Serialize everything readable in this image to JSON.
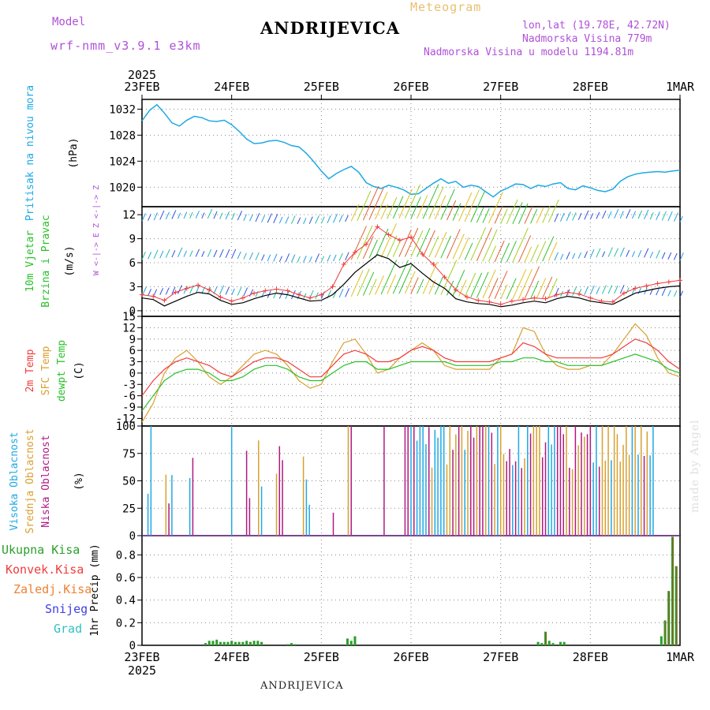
{
  "header": {
    "model_label": "Model",
    "model_name": "wrf-nmm_v3.9.1 e3km",
    "station": "ANDRIJEVICA",
    "title": "Meteogram",
    "lonlat": "lon,lat (19.78E, 42.72N)",
    "elevation": "Nadmorska Visina 779m",
    "model_elevation": "Nadmorska Visina u modelu 1194.81m",
    "footer_station": "ANDRIJEVICA",
    "credit": "made by Angel"
  },
  "colors": {
    "pressure": "#1ea9e4",
    "temp2m": "#f03c3c",
    "sfc": "#d8a030",
    "dewpt": "#2ac02a",
    "gust": "#f03c3c",
    "speed": "#000000",
    "cloud_high": "#1ea9e4",
    "cloud_mid": "#d8a030",
    "cloud_low": "#b01a80",
    "precip": "#2aa02a",
    "snow": "#4040e0",
    "grad": "#30c0c0",
    "purple": "#b050d8"
  },
  "chart_data": {
    "type": "meteogram",
    "x_axis": {
      "year": "2025",
      "days": [
        "23FEB",
        "24FEB",
        "25FEB",
        "26FEB",
        "27FEB",
        "28FEB",
        "1MAR"
      ],
      "range_hours": [
        0,
        144
      ]
    },
    "panels": [
      {
        "id": "pressure",
        "type": "line",
        "ylabel_lines": [
          "Pritisak na nivou mora"
        ],
        "unit": "(hPa)",
        "ylim": [
          1017,
          1033.5
        ],
        "ticks": [
          1020,
          1024,
          1028,
          1032
        ],
        "series": [
          {
            "name": "Pritisak na nivou mora",
            "x": [
              0,
              2,
              4,
              6,
              8,
              10,
              12,
              14,
              16,
              18,
              20,
              22,
              24,
              26,
              28,
              30,
              32,
              34,
              36,
              38,
              40,
              42,
              44,
              46,
              48,
              50,
              52,
              54,
              56,
              58,
              60,
              62,
              64,
              66,
              68,
              70,
              72,
              74,
              76,
              78,
              80,
              82,
              84,
              86,
              88,
              90,
              92,
              94,
              96,
              98,
              100,
              102,
              104,
              106,
              108,
              110,
              112,
              114,
              116,
              118,
              120,
              122,
              124,
              126,
              128,
              130,
              132,
              134,
              136,
              138,
              140,
              142,
              144
            ],
            "y": [
              1030.2,
              1031.8,
              1032.7,
              1031.4,
              1029.9,
              1029.4,
              1030.3,
              1030.9,
              1030.7,
              1030.2,
              1030.1,
              1030.3,
              1029.6,
              1028.6,
              1027.4,
              1026.7,
              1026.8,
              1027.1,
              1027.2,
              1026.9,
              1026.4,
              1026.2,
              1025.2,
              1023.9,
              1022.5,
              1021.3,
              1022.1,
              1022.7,
              1023.2,
              1022.3,
              1020.7,
              1020.1,
              1019.8,
              1020.3,
              1020.0,
              1019.6,
              1018.9,
              1019.0,
              1019.8,
              1020.6,
              1021.3,
              1020.6,
              1020.9,
              1020.0,
              1020.3,
              1020.1,
              1019.3,
              1018.5,
              1019.4,
              1019.9,
              1020.5,
              1020.4,
              1019.8,
              1020.3,
              1020.1,
              1020.5,
              1020.7,
              1019.8,
              1019.6,
              1020.2,
              1019.9,
              1019.5,
              1019.3,
              1019.7,
              1020.9,
              1021.6,
              1022.0,
              1022.2,
              1022.3,
              1022.4,
              1022.3,
              1022.5,
              1022.6
            ]
          }
        ]
      },
      {
        "id": "wind",
        "type": "line+barbs",
        "ylabel_lines": [
          "10m Vjetar",
          "Brzina i Pravac"
        ],
        "unit": "(m/s)",
        "ylim": [
          -0.7,
          13
        ],
        "ticks": [
          0,
          3,
          6,
          9,
          12
        ],
        "compass": "W <-|-> E   Z <-|-> Z",
        "series": [
          {
            "name": "Brzina",
            "x": [
              0,
              3,
              6,
              9,
              12,
              15,
              18,
              21,
              24,
              27,
              30,
              33,
              36,
              39,
              42,
              45,
              48,
              51,
              54,
              57,
              60,
              63,
              66,
              69,
              72,
              75,
              78,
              81,
              84,
              87,
              90,
              93,
              96,
              99,
              102,
              105,
              108,
              111,
              114,
              117,
              120,
              123,
              126,
              129,
              132,
              135,
              138,
              141,
              144
            ],
            "y": [
              1.6,
              1.4,
              0.6,
              1.2,
              1.8,
              2.3,
              2.1,
              1.3,
              0.8,
              1.0,
              1.5,
              1.9,
              2.2,
              2.0,
              1.6,
              1.2,
              1.3,
              2.0,
              3.3,
              4.8,
              5.9,
              7.0,
              6.5,
              5.4,
              5.9,
              4.7,
              3.6,
              2.8,
              1.5,
              1.1,
              0.9,
              0.8,
              0.5,
              0.7,
              1.0,
              1.2,
              1.0,
              1.5,
              1.8,
              1.6,
              1.2,
              1.0,
              0.8,
              1.5,
              2.2,
              2.5,
              2.8,
              3.0,
              3.1
            ]
          },
          {
            "name": "Udar",
            "x": [
              0,
              3,
              6,
              9,
              12,
              15,
              18,
              21,
              24,
              27,
              30,
              33,
              36,
              39,
              42,
              45,
              48,
              51,
              54,
              57,
              60,
              63,
              66,
              69,
              72,
              75,
              78,
              81,
              84,
              87,
              90,
              93,
              96,
              99,
              102,
              105,
              108,
              111,
              114,
              117,
              120,
              123,
              126,
              129,
              132,
              135,
              138,
              141,
              144
            ],
            "y": [
              2.0,
              1.8,
              1.3,
              2.3,
              2.8,
              3.2,
              2.6,
              1.7,
              1.2,
              1.6,
              2.2,
              2.5,
              2.7,
              2.5,
              2.0,
              1.6,
              2.0,
              3.0,
              5.8,
              7.3,
              8.3,
              10.5,
              9.5,
              8.8,
              9.2,
              7.1,
              5.8,
              4.2,
              2.6,
              1.7,
              1.3,
              1.1,
              0.8,
              1.2,
              1.4,
              1.6,
              1.5,
              2.0,
              2.3,
              2.1,
              1.6,
              1.2,
              1.1,
              2.2,
              2.8,
              3.1,
              3.4,
              3.6,
              3.8
            ]
          }
        ]
      },
      {
        "id": "temperature",
        "type": "line",
        "ylabel_lines": [
          "2m Temp",
          "SFC Temp",
          "dewpt Temp"
        ],
        "unit": "(C)",
        "ylim": [
          -14,
          15
        ],
        "ticks": [
          -12,
          -9,
          -6,
          -3,
          0,
          3,
          6,
          9,
          12,
          15
        ],
        "series": [
          {
            "name": "2m Temp",
            "x": [
              0,
              3,
              6,
              9,
              12,
              15,
              18,
              21,
              24,
              27,
              30,
              33,
              36,
              39,
              42,
              45,
              48,
              51,
              54,
              57,
              60,
              63,
              66,
              69,
              72,
              75,
              78,
              81,
              84,
              87,
              90,
              93,
              96,
              99,
              102,
              105,
              108,
              111,
              114,
              117,
              120,
              123,
              126,
              129,
              132,
              135,
              138,
              141,
              144
            ],
            "y": [
              -6,
              -2,
              1,
              3,
              4,
              3,
              2,
              0,
              -1,
              1,
              3,
              4,
              4,
              3,
              1,
              -1,
              -1,
              2,
              5,
              6,
              5,
              3,
              3,
              4,
              6,
              7,
              6,
              4,
              3,
              3,
              3,
              3,
              4,
              5,
              8,
              7,
              5,
              4,
              4,
              4,
              4,
              4,
              5,
              7,
              9,
              8,
              6,
              3,
              1
            ]
          },
          {
            "name": "SFC Temp",
            "x": [
              0,
              3,
              6,
              9,
              12,
              15,
              18,
              21,
              24,
              27,
              30,
              33,
              36,
              39,
              42,
              45,
              48,
              51,
              54,
              57,
              60,
              63,
              66,
              69,
              72,
              75,
              78,
              81,
              84,
              87,
              90,
              93,
              96,
              99,
              102,
              105,
              108,
              111,
              114,
              117,
              120,
              123,
              126,
              129,
              132,
              135,
              138,
              141,
              144
            ],
            "y": [
              -13,
              -8,
              0,
              4,
              6,
              3,
              -1,
              -3,
              -1,
              2,
              5,
              6,
              5,
              2,
              -2,
              -4,
              -3,
              3,
              8,
              9,
              5,
              0,
              1,
              4,
              6,
              8,
              6,
              2,
              1,
              1,
              1,
              1,
              4,
              5,
              12,
              11,
              5,
              2,
              1,
              1,
              2,
              2,
              5,
              9,
              13,
              10,
              4,
              0,
              -1
            ]
          },
          {
            "name": "dewpt Temp",
            "x": [
              0,
              3,
              6,
              9,
              12,
              15,
              18,
              21,
              24,
              27,
              30,
              33,
              36,
              39,
              42,
              45,
              48,
              51,
              54,
              57,
              60,
              63,
              66,
              69,
              72,
              75,
              78,
              81,
              84,
              87,
              90,
              93,
              96,
              99,
              102,
              105,
              108,
              111,
              114,
              117,
              120,
              123,
              126,
              129,
              132,
              135,
              138,
              141,
              144
            ],
            "y": [
              -10,
              -6,
              -2,
              0,
              1,
              1,
              0,
              -2,
              -2,
              -1,
              1,
              2,
              2,
              1,
              -1,
              -2,
              -2,
              0,
              2,
              3,
              3,
              1,
              1,
              2,
              3,
              3,
              3,
              3,
              2,
              2,
              2,
              2,
              3,
              3,
              4,
              4,
              3,
              3,
              2,
              2,
              2,
              2,
              3,
              4,
              5,
              4,
              3,
              1,
              0
            ]
          }
        ]
      },
      {
        "id": "clouds",
        "type": "bar",
        "ylabel_lines": [
          "Visoka Oblacnost",
          "Srednja Oblacnost",
          "Niska Oblacnost"
        ],
        "unit": "(%)",
        "ylim": [
          0,
          100
        ],
        "ticks": [
          0,
          25,
          50,
          75,
          100
        ]
      },
      {
        "id": "precip",
        "type": "bar",
        "ylabel_lines": [
          "1hr Precip (mm)"
        ],
        "unit": "",
        "ylim": [
          0,
          0.97
        ],
        "ticks": [
          0,
          0.2,
          0.4,
          0.6,
          0.8
        ],
        "legend": [
          "Ukupna Kisa",
          "Konvek.Kisa",
          "Zaledj.Kisa",
          "Snijeg",
          "Grad"
        ],
        "series": [
          {
            "name": "Ukupna Kisa",
            "x": [
              17,
              18,
              19,
              20,
              21,
              22,
              23,
              24,
              25,
              26,
              27,
              28,
              29,
              30,
              31,
              32,
              39,
              40,
              41,
              55,
              56,
              57,
              106,
              107,
              108,
              109,
              110,
              112,
              113,
              139,
              140,
              141,
              142,
              143
            ],
            "y": [
              0.02,
              0.04,
              0.04,
              0.05,
              0.03,
              0.03,
              0.03,
              0.04,
              0.03,
              0.03,
              0.03,
              0.04,
              0.03,
              0.04,
              0.04,
              0.03,
              0.01,
              0.02,
              0.01,
              0.06,
              0.04,
              0.08,
              0.03,
              0.02,
              0.12,
              0.04,
              0.02,
              0.03,
              0.03,
              0.08,
              0.22,
              0.48,
              0.96,
              0.7
            ]
          }
        ]
      }
    ]
  }
}
